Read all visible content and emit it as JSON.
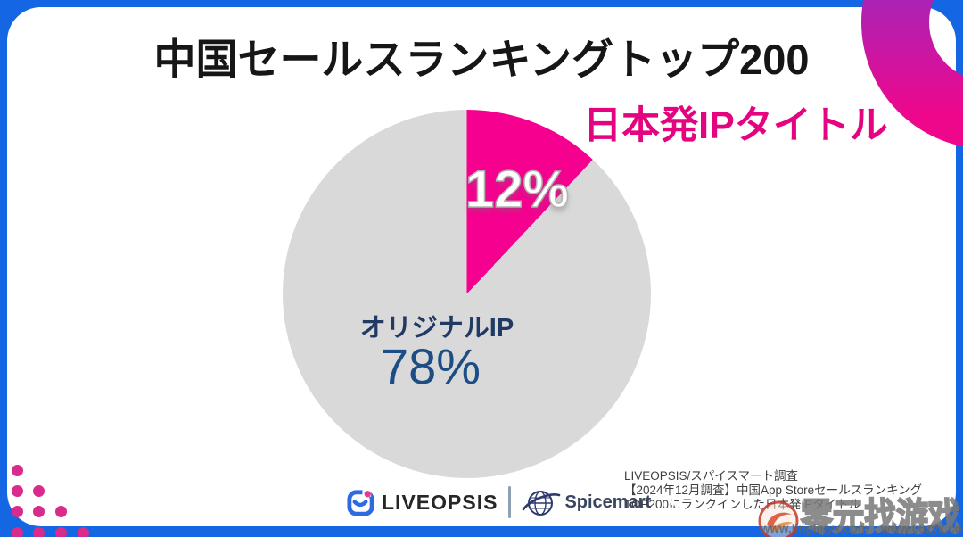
{
  "chart_data": {
    "type": "pie",
    "title": "中国セールスランキングトップ200",
    "direction": "clockwise",
    "start_angle_deg": 0,
    "slices": [
      {
        "label": "日本発IPタイトル",
        "value": 12,
        "display": "12%",
        "color": "#f5008f"
      },
      {
        "label": "オリジナルIP",
        "value": 78,
        "display": "78%",
        "color": "#d9d9d9"
      }
    ]
  },
  "footer": {
    "liveopsis_text": "LIVEOPSIS",
    "spicemart_text": "Spicemart",
    "source_lines": [
      "LIVEOPSIS/スパイスマート調査",
      "【2024年12月調査】中国App Storeセールスランキング",
      "TOP200にランクインした日本発IPタイトル"
    ]
  },
  "watermark": {
    "text": "零元找游戏",
    "url1": "www.lingliuyx.com",
    "url2": "www.06zyx.com"
  },
  "colors": {
    "background_blue": "#1566e2",
    "accent_pink": "#f5008f",
    "label_pink": "#e4047f",
    "pie_gray": "#d9d9d9",
    "navy_text": "#1d4d85",
    "dark_navy_text": "#203a64",
    "dot_pink": "#d92b8c",
    "crescent_purple": "#8233cf",
    "crescent_pink": "#ef078b"
  }
}
